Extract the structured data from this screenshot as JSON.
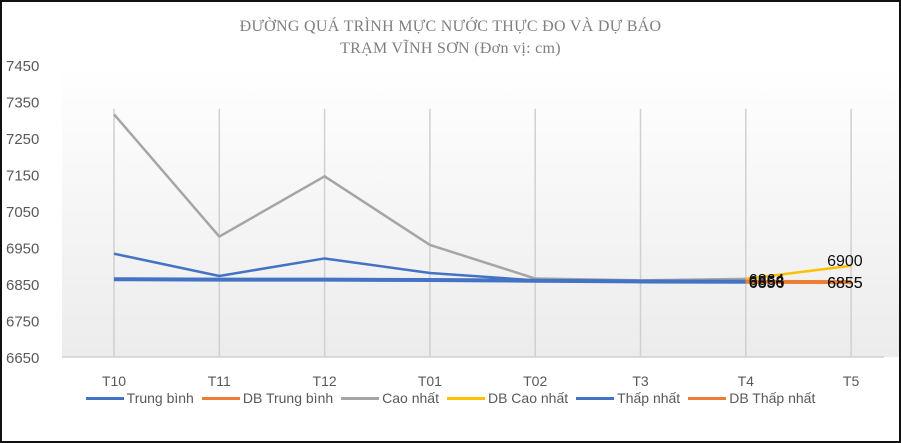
{
  "chart_data": {
    "type": "line",
    "title": "ĐƯỜNG QUÁ TRÌNH MỰC NƯỚC THỰC ĐO VÀ DỰ BÁO",
    "subtitle": "TRẠM VĨNH  SƠN (Đơn vị:  cm)",
    "xlabel": "",
    "ylabel": "",
    "categories": [
      "T10",
      "T11",
      "T12",
      "T01",
      "T02",
      "T3",
      "T4",
      "T5"
    ],
    "ylim": [
      6650,
      7450
    ],
    "yticks": [
      7450,
      7350,
      7250,
      7150,
      7050,
      6950,
      6850,
      6750,
      6650
    ],
    "grid": "vertical",
    "legend_position": "bottom",
    "series": [
      {
        "name": "Trung bình",
        "color": "#4472c4",
        "width": 2.5,
        "values": [
          6933,
          6872,
          6920,
          6880,
          6860,
          6858,
          6858,
          null
        ]
      },
      {
        "name": "DB Trung bình",
        "color": "#ed7d31",
        "width": 2.5,
        "values": [
          null,
          null,
          null,
          null,
          null,
          null,
          6858,
          6855
        ]
      },
      {
        "name": "Cao nhất",
        "color": "#a5a5a5",
        "width": 2.5,
        "values": [
          7315,
          6980,
          7145,
          6957,
          6865,
          6860,
          6864,
          null
        ]
      },
      {
        "name": "DB Cao nhất",
        "color": "#ffc000",
        "width": 2.5,
        "values": [
          null,
          null,
          null,
          null,
          null,
          null,
          6864,
          6900
        ]
      },
      {
        "name": "Thấp nhất",
        "color": "#4472c4",
        "width": 4,
        "values": [
          6863,
          6862,
          6862,
          6861,
          6859,
          6857,
          6856,
          null
        ]
      },
      {
        "name": "DB Thấp nhất",
        "color": "#ed7d31",
        "width": 4,
        "values": [
          null,
          null,
          null,
          null,
          null,
          null,
          6856,
          6855
        ]
      }
    ],
    "annotations": [
      {
        "x": "T4",
        "labels": [
          "6864",
          "6858",
          "6856"
        ]
      },
      {
        "x": "T5",
        "labels": [
          "6900",
          "6855",
          "6855"
        ]
      }
    ]
  },
  "legend": [
    {
      "label": "Trung bình",
      "color": "#4472c4"
    },
    {
      "label": "DB Trung bình",
      "color": "#ed7d31"
    },
    {
      "label": "Cao nhất",
      "color": "#a5a5a5"
    },
    {
      "label": "DB Cao nhất",
      "color": "#ffc000"
    },
    {
      "label": "Thấp nhất",
      "color": "#4472c4"
    },
    {
      "label": "DB Thấp nhất",
      "color": "#ed7d31"
    }
  ]
}
